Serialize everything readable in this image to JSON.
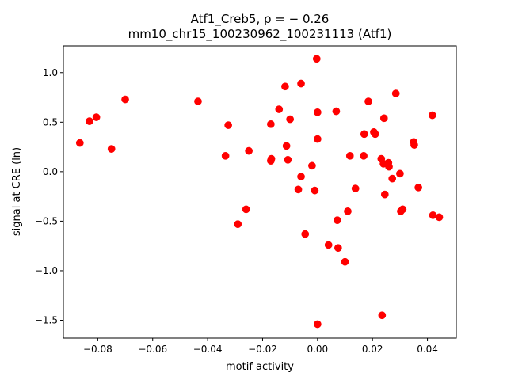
{
  "chart_data": {
    "type": "scatter",
    "title_line1": "Atf1_Creb5, ρ = − 0.26",
    "title_line2": "mm10_chr15_100230962_100231113 (Atf1)",
    "xlabel": "motif activity",
    "ylabel": "signal at CRE (ln)",
    "xlim": [
      -0.0925,
      0.0505
    ],
    "ylim": [
      -1.68,
      1.27
    ],
    "x_ticks": [
      -0.08,
      -0.06,
      -0.04,
      -0.02,
      0.0,
      0.02,
      0.04
    ],
    "x_tick_labels": [
      "−0.08",
      "−0.06",
      "−0.04",
      "−0.02",
      "0.00",
      "0.02",
      "0.04"
    ],
    "y_ticks": [
      -1.5,
      -1.0,
      -0.5,
      0.0,
      0.5,
      1.0
    ],
    "y_tick_labels": [
      "−1.5",
      "−1.0",
      "−0.5",
      "0.0",
      "0.5",
      "1.0"
    ],
    "grid": false,
    "marker_color": "#ff0000",
    "points": [
      {
        "x": -0.0865,
        "y": 0.29
      },
      {
        "x": -0.083,
        "y": 0.51
      },
      {
        "x": -0.0805,
        "y": 0.55
      },
      {
        "x": -0.075,
        "y": 0.23
      },
      {
        "x": -0.07,
        "y": 0.73
      },
      {
        "x": -0.0435,
        "y": 0.71
      },
      {
        "x": -0.0335,
        "y": 0.16
      },
      {
        "x": -0.0325,
        "y": 0.47
      },
      {
        "x": -0.029,
        "y": -0.53
      },
      {
        "x": -0.026,
        "y": -0.38
      },
      {
        "x": -0.025,
        "y": 0.21
      },
      {
        "x": -0.017,
        "y": 0.48
      },
      {
        "x": -0.017,
        "y": 0.11
      },
      {
        "x": -0.0168,
        "y": 0.13
      },
      {
        "x": -0.014,
        "y": 0.63
      },
      {
        "x": -0.0118,
        "y": 0.86
      },
      {
        "x": -0.0113,
        "y": 0.26
      },
      {
        "x": -0.0108,
        "y": 0.12
      },
      {
        "x": -0.01,
        "y": 0.53
      },
      {
        "x": -0.007,
        "y": -0.18
      },
      {
        "x": -0.006,
        "y": 0.89
      },
      {
        "x": -0.006,
        "y": -0.05
      },
      {
        "x": -0.0045,
        "y": -0.63
      },
      {
        "x": -0.002,
        "y": 0.06
      },
      {
        "x": -0.001,
        "y": -0.19
      },
      {
        "x": -0.0003,
        "y": 1.14
      },
      {
        "x": 0.0,
        "y": 0.6
      },
      {
        "x": 0.0,
        "y": 0.33
      },
      {
        "x": 0.0,
        "y": -1.54
      },
      {
        "x": 0.004,
        "y": -0.74
      },
      {
        "x": 0.0068,
        "y": 0.61
      },
      {
        "x": 0.0072,
        "y": -0.49
      },
      {
        "x": 0.0075,
        "y": -0.77
      },
      {
        "x": 0.01,
        "y": -0.91
      },
      {
        "x": 0.011,
        "y": -0.4
      },
      {
        "x": 0.0118,
        "y": 0.16
      },
      {
        "x": 0.0138,
        "y": -0.17
      },
      {
        "x": 0.0168,
        "y": 0.16
      },
      {
        "x": 0.017,
        "y": 0.38
      },
      {
        "x": 0.0185,
        "y": 0.71
      },
      {
        "x": 0.0205,
        "y": 0.4
      },
      {
        "x": 0.021,
        "y": 0.38
      },
      {
        "x": 0.0232,
        "y": 0.13
      },
      {
        "x": 0.0235,
        "y": -1.45
      },
      {
        "x": 0.024,
        "y": 0.08
      },
      {
        "x": 0.0242,
        "y": 0.54
      },
      {
        "x": 0.0245,
        "y": -0.23
      },
      {
        "x": 0.0258,
        "y": 0.09
      },
      {
        "x": 0.026,
        "y": 0.05
      },
      {
        "x": 0.0272,
        "y": -0.07
      },
      {
        "x": 0.0285,
        "y": 0.79
      },
      {
        "x": 0.03,
        "y": -0.02
      },
      {
        "x": 0.0303,
        "y": -0.4
      },
      {
        "x": 0.031,
        "y": -0.38
      },
      {
        "x": 0.035,
        "y": 0.3
      },
      {
        "x": 0.0352,
        "y": 0.27
      },
      {
        "x": 0.0367,
        "y": -0.16
      },
      {
        "x": 0.0418,
        "y": 0.57
      },
      {
        "x": 0.042,
        "y": -0.44
      },
      {
        "x": 0.0443,
        "y": -0.46
      }
    ]
  }
}
